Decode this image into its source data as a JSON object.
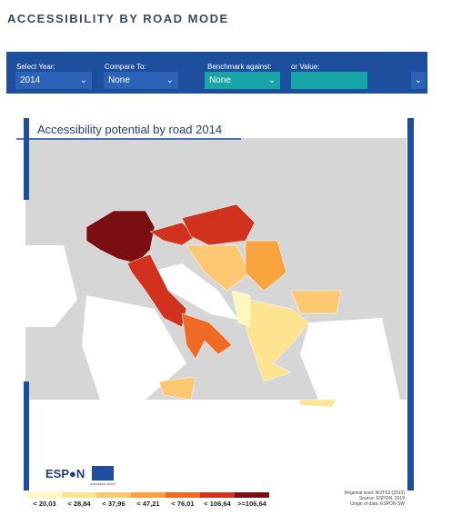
{
  "header": {
    "title": "ACCESSIBILITY BY ROAD MODE"
  },
  "controls": [
    {
      "label": "Select Year:",
      "value": "2014"
    },
    {
      "label": "Compare To:",
      "value": "None"
    },
    {
      "label": "Benchmark against:",
      "value": "None"
    },
    {
      "label": "or Value:"
    }
  ],
  "map": {
    "title": "Accessibility potential by road 2014"
  },
  "legend": {
    "items": [
      {
        "label": "< 20,03",
        "color": "#fff7bc"
      },
      {
        "label": "< 28,84",
        "color": "#fee391"
      },
      {
        "label": "< 37,96",
        "color": "#fec872"
      },
      {
        "label": "< 47,21",
        "color": "#f9a33f"
      },
      {
        "label": "< 76,01",
        "color": "#ef6a23"
      },
      {
        "label": "< 106,64",
        "color": "#d0321d"
      },
      {
        "label": ">=106,64",
        "color": "#7a0e12"
      }
    ]
  },
  "footer": {
    "notes": [
      "Regional level: NUTS3 (2013)",
      "Source: ESPON, 2019",
      "Origin of data: ESPON SW"
    ],
    "logo": "ESP●N",
    "eu": "EUROPEAN UNION"
  }
}
